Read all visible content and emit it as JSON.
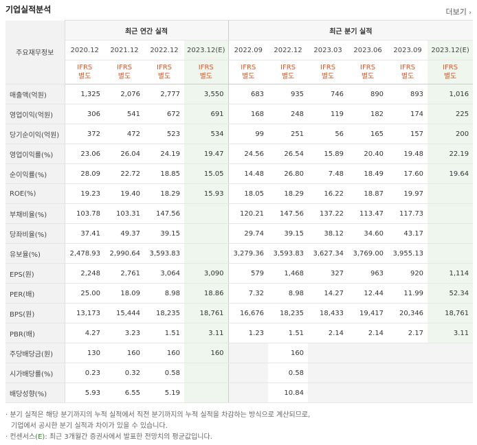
{
  "header": {
    "title": "기업실적분석",
    "more_label": "더보기",
    "more_arrow": "›"
  },
  "table": {
    "row_header": "주요재무정보",
    "group_annual": "최근 연간 실적",
    "group_quarter": "최근 분기 실적",
    "periods": [
      "2020.12",
      "2021.12",
      "2022.12",
      "2023.12(E)",
      "2022.09",
      "2022.12",
      "2023.03",
      "2023.06",
      "2023.09",
      "2023.12(E)"
    ],
    "ifrs_line1": "IFRS",
    "ifrs_line2": "별도",
    "rows": [
      {
        "label": "매출액(억원)",
        "values": [
          "1,325",
          "2,076",
          "2,777",
          "3,550",
          "683",
          "935",
          "746",
          "890",
          "893",
          "1,016"
        ]
      },
      {
        "label": "영업이익(억원)",
        "values": [
          "306",
          "541",
          "672",
          "691",
          "168",
          "248",
          "119",
          "182",
          "174",
          "225"
        ]
      },
      {
        "label": "당기순이익(억원)",
        "values": [
          "372",
          "472",
          "523",
          "534",
          "99",
          "251",
          "56",
          "165",
          "157",
          "200"
        ]
      },
      {
        "label": "영업이익률(%)",
        "values": [
          "23.06",
          "26.04",
          "24.19",
          "19.47",
          "24.56",
          "26.54",
          "15.89",
          "20.40",
          "19.48",
          "22.19"
        ]
      },
      {
        "label": "순이익률(%)",
        "values": [
          "28.09",
          "22.72",
          "18.85",
          "15.05",
          "14.48",
          "26.80",
          "7.48",
          "18.49",
          "17.60",
          "19.64"
        ]
      },
      {
        "label": "ROE(%)",
        "values": [
          "19.23",
          "19.40",
          "18.29",
          "15.93",
          "18.05",
          "18.29",
          "16.22",
          "18.87",
          "19.97",
          ""
        ]
      },
      {
        "label": "부채비율(%)",
        "values": [
          "103.78",
          "103.31",
          "147.56",
          "",
          "120.21",
          "147.56",
          "137.22",
          "113.47",
          "117.73",
          ""
        ]
      },
      {
        "label": "당좌비율(%)",
        "values": [
          "37.41",
          "49.37",
          "39.15",
          "",
          "29.74",
          "39.15",
          "38.12",
          "34.60",
          "43.17",
          ""
        ]
      },
      {
        "label": "유보율(%)",
        "values": [
          "2,478.93",
          "2,990.64",
          "3,593.83",
          "",
          "3,279.36",
          "3,593.83",
          "3,627.34",
          "3,769.00",
          "3,955.13",
          ""
        ]
      },
      {
        "label": "EPS(원)",
        "values": [
          "2,248",
          "2,761",
          "3,064",
          "3,090",
          "579",
          "1,468",
          "327",
          "963",
          "920",
          "1,114"
        ]
      },
      {
        "label": "PER(배)",
        "values": [
          "25.00",
          "18.09",
          "8.98",
          "18.86",
          "7.32",
          "8.98",
          "14.27",
          "12.44",
          "11.99",
          "52.34"
        ]
      },
      {
        "label": "BPS(원)",
        "values": [
          "13,173",
          "15,444",
          "18,235",
          "18,761",
          "16,676",
          "18,235",
          "18,433",
          "19,417",
          "20,346",
          "18,761"
        ]
      },
      {
        "label": "PBR(배)",
        "values": [
          "4.27",
          "3.23",
          "1.51",
          "3.11",
          "1.23",
          "1.51",
          "2.14",
          "2.14",
          "2.17",
          "3.11"
        ]
      },
      {
        "label": "주당배당금(원)",
        "values": [
          "130",
          "160",
          "160",
          "160",
          "",
          "160",
          "",
          "",
          "",
          ""
        ]
      },
      {
        "label": "시가배당률(%)",
        "values": [
          "0.23",
          "0.32",
          "0.58",
          "",
          "",
          "0.58",
          "",
          "",
          "",
          ""
        ]
      },
      {
        "label": "배당성향(%)",
        "values": [
          "5.93",
          "6.55",
          "5.19",
          "",
          "",
          "10.84",
          "",
          "",
          "",
          ""
        ]
      }
    ]
  },
  "notes": {
    "line1": "· 분기 실적은 해당 분기까지의 누적 실적에서 직전 분기까지의 누적 실적을 차감하는 방식으로 계산되므로,",
    "line2": "기업에서 공시한 분기 실적과 차이가 있을 수 있습니다.",
    "line3_prefix": "· 컨센서스",
    "line3_mark": "(E)",
    "line3_suffix": ": 최근 3개월간 증권사에서 발표한 전망치의 평균값입니다."
  }
}
